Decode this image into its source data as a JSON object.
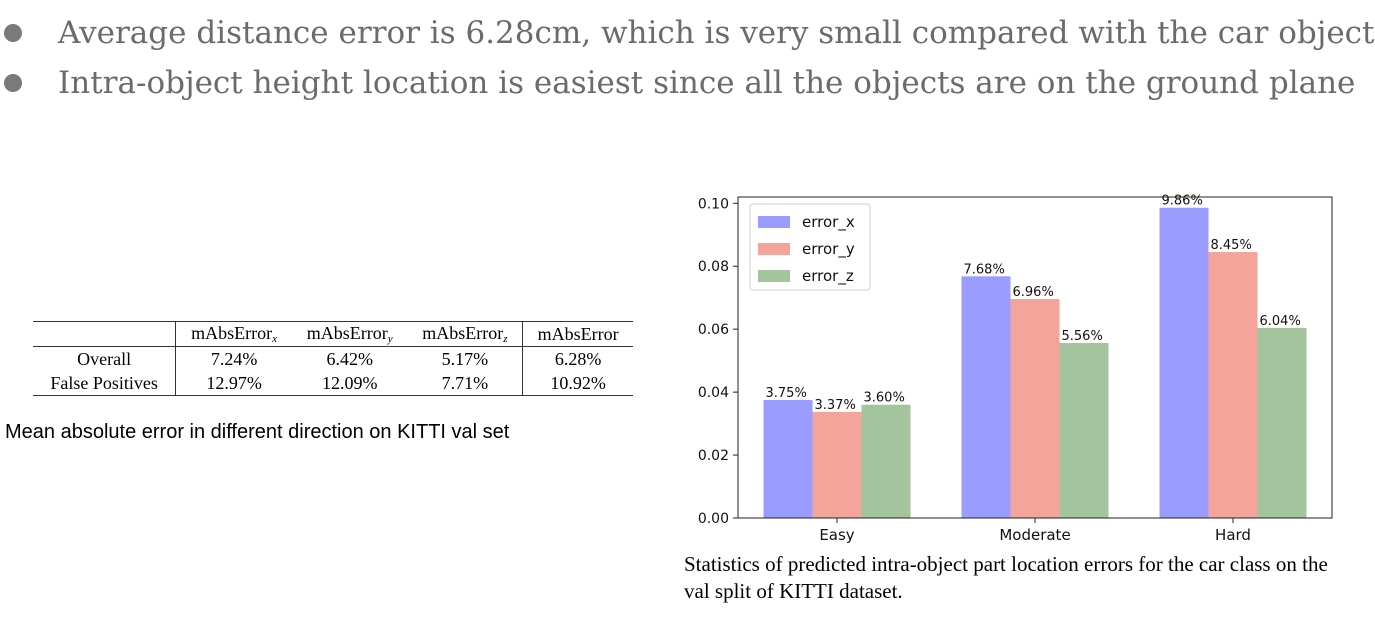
{
  "bullets": [
    "Average distance error is 6.28cm, which is very small compared with the car object",
    "Intra-object height location is easiest since all the objects are on the ground plane"
  ],
  "table": {
    "headers": [
      "",
      "mAbsError",
      "mAbsError",
      "mAbsError",
      "mAbsError"
    ],
    "header_subscripts": [
      "",
      "x",
      "y",
      "z",
      ""
    ],
    "rows": [
      {
        "label": "Overall",
        "values": [
          "7.24%",
          "6.42%",
          "5.17%",
          "6.28%"
        ]
      },
      {
        "label": "False Positives",
        "values": [
          "12.97%",
          "12.09%",
          "7.71%",
          "10.92%"
        ]
      }
    ],
    "caption": "Mean absolute error in different direction on KITTI val set"
  },
  "chart_caption": "Statistics of predicted intra-object part location errors for the car class on the val split of KITTI dataset.",
  "chart_data": {
    "type": "bar",
    "categories": [
      "Easy",
      "Moderate",
      "Hard"
    ],
    "series": [
      {
        "name": "error_x",
        "values": [
          0.0375,
          0.0768,
          0.0986
        ],
        "labels": [
          "3.75%",
          "7.68%",
          "9.86%"
        ],
        "color": "#9a9cff"
      },
      {
        "name": "error_y",
        "values": [
          0.0337,
          0.0696,
          0.0845
        ],
        "labels": [
          "3.37%",
          "6.96%",
          "8.45%"
        ],
        "color": "#f4a49b"
      },
      {
        "name": "error_z",
        "values": [
          0.036,
          0.0556,
          0.0604
        ],
        "labels": [
          "3.60%",
          "5.56%",
          "6.04%"
        ],
        "color": "#a3c49c"
      }
    ],
    "ylim": [
      0,
      0.102
    ],
    "yticks": [
      "0.00",
      "0.02",
      "0.04",
      "0.06",
      "0.08",
      "0.10"
    ],
    "legend_position": "top-left"
  }
}
